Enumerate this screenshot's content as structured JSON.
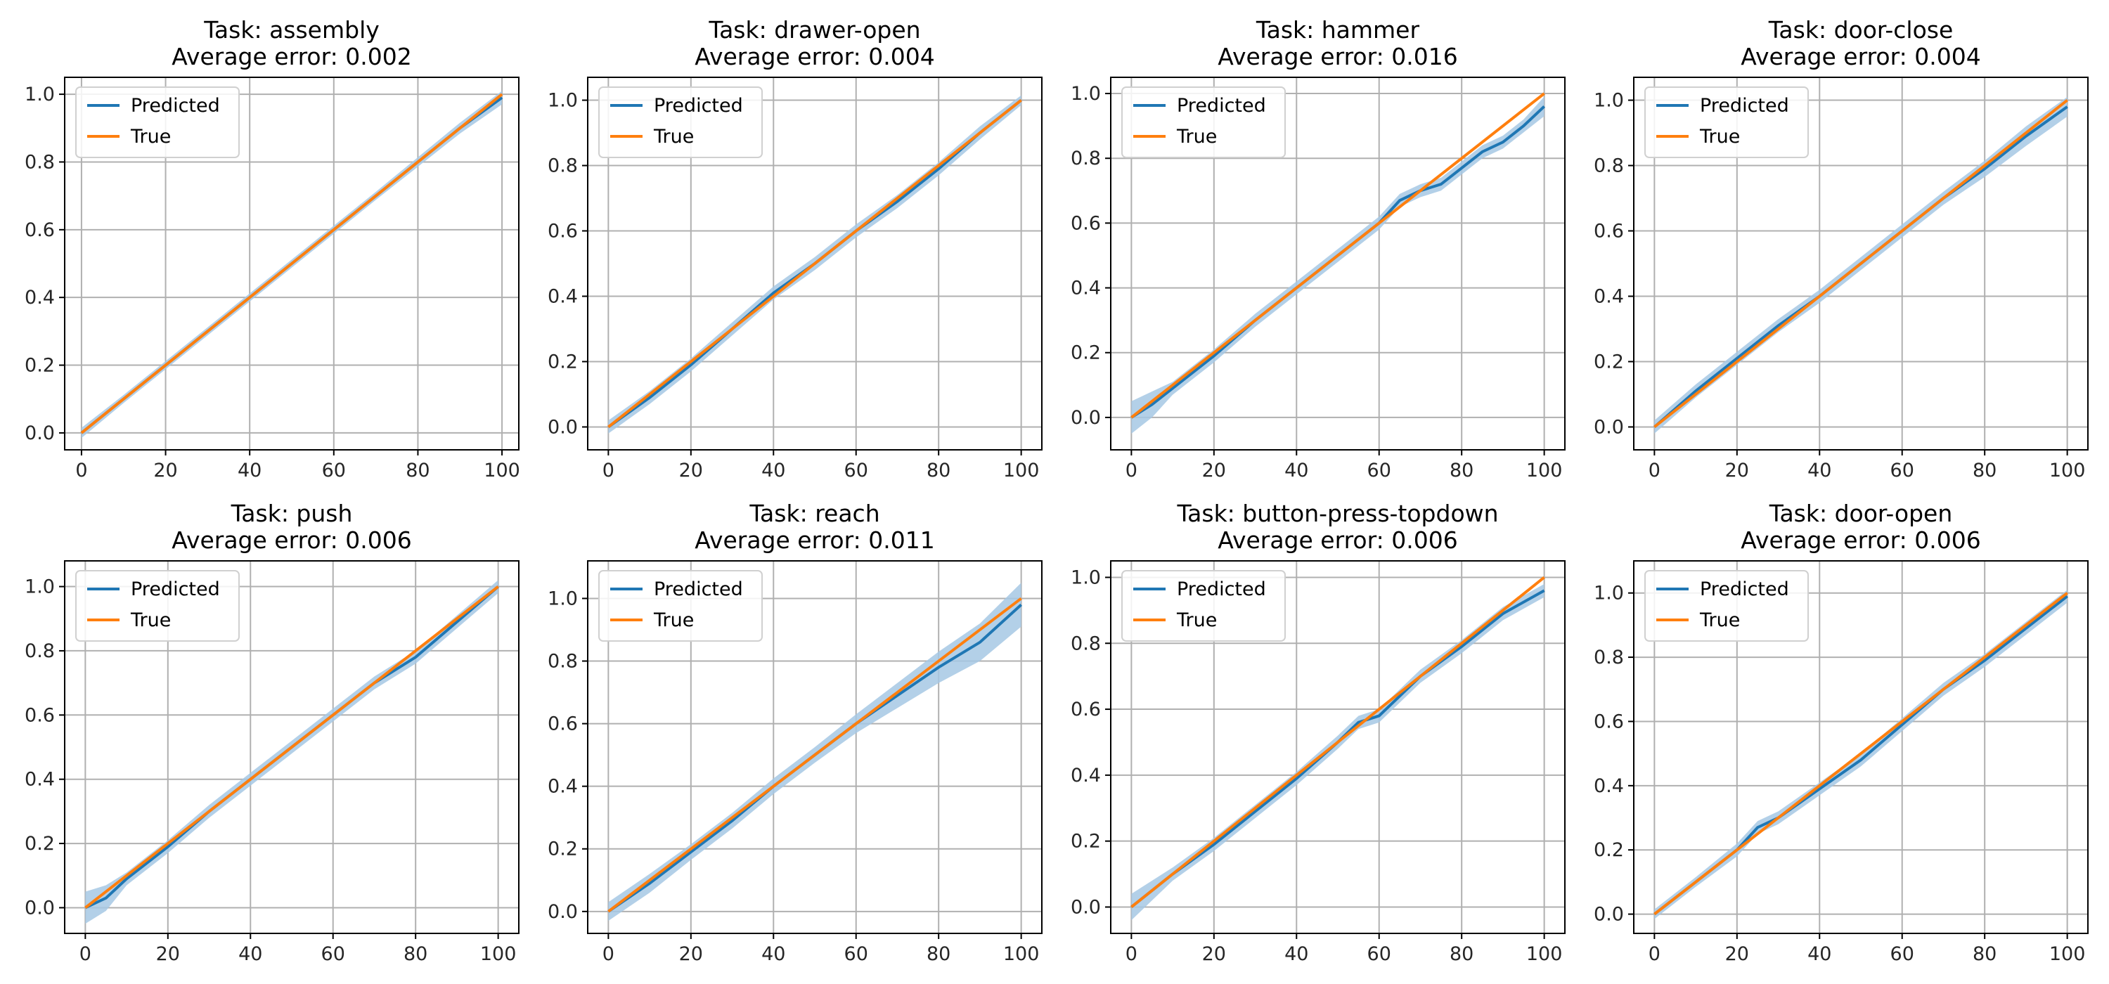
{
  "colors": {
    "predicted": "#1f77b4",
    "true": "#ff7f0e",
    "band": "#a6c8e4",
    "grid": "#b0b0b0",
    "axis": "#000000"
  },
  "legend": {
    "predicted_label": "Predicted",
    "true_label": "True",
    "placement": "upper-left"
  },
  "chart_data": [
    {
      "type": "line",
      "title": "Task: assembly",
      "subtitle": "Average error: 0.002",
      "xlim": [
        -4,
        104
      ],
      "ylim": [
        -0.05,
        1.05
      ],
      "xticks": [
        0,
        20,
        40,
        60,
        80,
        100
      ],
      "yticks": [
        0.0,
        0.2,
        0.4,
        0.6,
        0.8,
        1.0
      ],
      "grid": true,
      "series": [
        {
          "name": "Predicted",
          "x": [
            0,
            10,
            20,
            30,
            40,
            50,
            60,
            70,
            80,
            90,
            100
          ],
          "y": [
            0.0,
            0.1,
            0.2,
            0.3,
            0.4,
            0.5,
            0.6,
            0.7,
            0.8,
            0.9,
            0.99
          ],
          "band": [
            0.015,
            0.012,
            0.012,
            0.012,
            0.012,
            0.012,
            0.012,
            0.012,
            0.014,
            0.016,
            0.02
          ]
        },
        {
          "name": "True",
          "x": [
            0,
            100
          ],
          "y": [
            0.0,
            1.0
          ]
        }
      ]
    },
    {
      "type": "line",
      "title": "Task: drawer-open",
      "subtitle": "Average error: 0.004",
      "xlim": [
        -5,
        105
      ],
      "ylim": [
        -0.07,
        1.07
      ],
      "xticks": [
        0,
        20,
        40,
        60,
        80,
        100
      ],
      "yticks": [
        0.0,
        0.2,
        0.4,
        0.6,
        0.8,
        1.0
      ],
      "grid": true,
      "series": [
        {
          "name": "Predicted",
          "x": [
            0,
            10,
            20,
            30,
            40,
            50,
            60,
            70,
            80,
            90,
            100
          ],
          "y": [
            0.0,
            0.09,
            0.19,
            0.3,
            0.41,
            0.5,
            0.6,
            0.69,
            0.79,
            0.9,
            1.0
          ],
          "band": [
            0.02,
            0.02,
            0.02,
            0.02,
            0.02,
            0.02,
            0.02,
            0.02,
            0.02,
            0.02,
            0.015
          ]
        },
        {
          "name": "True",
          "x": [
            0,
            100
          ],
          "y": [
            0.0,
            1.0
          ]
        }
      ]
    },
    {
      "type": "line",
      "title": "Task: hammer",
      "subtitle": "Average error: 0.016",
      "xlim": [
        -5,
        105
      ],
      "ylim": [
        -0.1,
        1.05
      ],
      "xticks": [
        0,
        20,
        40,
        60,
        80,
        100
      ],
      "yticks": [
        0.0,
        0.2,
        0.4,
        0.6,
        0.8,
        1.0
      ],
      "grid": true,
      "series": [
        {
          "name": "Predicted",
          "x": [
            0,
            5,
            10,
            20,
            30,
            40,
            50,
            60,
            65,
            70,
            75,
            80,
            85,
            90,
            95,
            100
          ],
          "y": [
            0.0,
            0.04,
            0.09,
            0.19,
            0.3,
            0.4,
            0.5,
            0.6,
            0.67,
            0.7,
            0.72,
            0.77,
            0.82,
            0.85,
            0.9,
            0.96
          ],
          "band": [
            0.05,
            0.04,
            0.02,
            0.02,
            0.02,
            0.02,
            0.02,
            0.02,
            0.02,
            0.02,
            0.02,
            0.02,
            0.02,
            0.02,
            0.02,
            0.03
          ]
        },
        {
          "name": "True",
          "x": [
            0,
            100
          ],
          "y": [
            0.0,
            1.0
          ]
        }
      ]
    },
    {
      "type": "line",
      "title": "Task: door-close",
      "subtitle": "Average error: 0.004",
      "xlim": [
        -5,
        105
      ],
      "ylim": [
        -0.07,
        1.07
      ],
      "xticks": [
        0,
        20,
        40,
        60,
        80,
        100
      ],
      "yticks": [
        0.0,
        0.2,
        0.4,
        0.6,
        0.8,
        1.0
      ],
      "grid": true,
      "series": [
        {
          "name": "Predicted",
          "x": [
            0,
            10,
            20,
            30,
            40,
            50,
            60,
            70,
            80,
            90,
            100
          ],
          "y": [
            0.0,
            0.11,
            0.21,
            0.31,
            0.4,
            0.5,
            0.6,
            0.7,
            0.79,
            0.89,
            0.98
          ],
          "band": [
            0.02,
            0.02,
            0.02,
            0.02,
            0.02,
            0.02,
            0.02,
            0.02,
            0.025,
            0.03,
            0.03
          ]
        },
        {
          "name": "True",
          "x": [
            0,
            100
          ],
          "y": [
            0.0,
            1.0
          ]
        }
      ]
    },
    {
      "type": "line",
      "title": "Task: push",
      "subtitle": "Average error: 0.006",
      "xlim": [
        -5,
        105
      ],
      "ylim": [
        -0.08,
        1.08
      ],
      "xticks": [
        0,
        20,
        40,
        60,
        80,
        100
      ],
      "yticks": [
        0.0,
        0.2,
        0.4,
        0.6,
        0.8,
        1.0
      ],
      "grid": true,
      "series": [
        {
          "name": "Predicted",
          "x": [
            0,
            5,
            10,
            20,
            30,
            40,
            50,
            60,
            70,
            80,
            90,
            100
          ],
          "y": [
            0.0,
            0.03,
            0.09,
            0.19,
            0.3,
            0.4,
            0.5,
            0.6,
            0.7,
            0.78,
            0.89,
            1.0
          ],
          "band": [
            0.05,
            0.04,
            0.02,
            0.02,
            0.02,
            0.02,
            0.02,
            0.02,
            0.02,
            0.02,
            0.02,
            0.02
          ]
        },
        {
          "name": "True",
          "x": [
            0,
            100
          ],
          "y": [
            0.0,
            1.0
          ]
        }
      ]
    },
    {
      "type": "line",
      "title": "Task: reach",
      "subtitle": "Average error: 0.011",
      "xlim": [
        -5,
        105
      ],
      "ylim": [
        -0.07,
        1.12
      ],
      "xticks": [
        0,
        20,
        40,
        60,
        80,
        100
      ],
      "yticks": [
        0.0,
        0.2,
        0.4,
        0.6,
        0.8,
        1.0
      ],
      "grid": true,
      "series": [
        {
          "name": "Predicted",
          "x": [
            0,
            10,
            20,
            30,
            40,
            50,
            60,
            70,
            80,
            90,
            100
          ],
          "y": [
            0.0,
            0.09,
            0.19,
            0.29,
            0.4,
            0.5,
            0.6,
            0.69,
            0.78,
            0.86,
            0.98
          ],
          "band": [
            0.03,
            0.03,
            0.025,
            0.025,
            0.025,
            0.025,
            0.03,
            0.04,
            0.05,
            0.06,
            0.07
          ]
        },
        {
          "name": "True",
          "x": [
            0,
            100
          ],
          "y": [
            0.0,
            1.0
          ]
        }
      ]
    },
    {
      "type": "line",
      "title": "Task: button-press-topdown",
      "subtitle": "Average error: 0.006",
      "xlim": [
        -5,
        105
      ],
      "ylim": [
        -0.08,
        1.05
      ],
      "xticks": [
        0,
        20,
        40,
        60,
        80,
        100
      ],
      "yticks": [
        0.0,
        0.2,
        0.4,
        0.6,
        0.8,
        1.0
      ],
      "grid": true,
      "series": [
        {
          "name": "Predicted",
          "x": [
            0,
            10,
            20,
            30,
            40,
            50,
            55,
            60,
            70,
            80,
            90,
            100
          ],
          "y": [
            0.0,
            0.1,
            0.19,
            0.29,
            0.39,
            0.5,
            0.56,
            0.58,
            0.7,
            0.79,
            0.89,
            0.96
          ],
          "band": [
            0.04,
            0.02,
            0.02,
            0.02,
            0.02,
            0.02,
            0.02,
            0.02,
            0.02,
            0.02,
            0.02,
            0.02
          ]
        },
        {
          "name": "True",
          "x": [
            0,
            100
          ],
          "y": [
            0.0,
            1.0
          ]
        }
      ]
    },
    {
      "type": "line",
      "title": "Task: door-open",
      "subtitle": "Average error: 0.006",
      "xlim": [
        -5,
        105
      ],
      "ylim": [
        -0.06,
        1.1
      ],
      "xticks": [
        0,
        20,
        40,
        60,
        80,
        100
      ],
      "yticks": [
        0.0,
        0.2,
        0.4,
        0.6,
        0.8,
        1.0
      ],
      "grid": true,
      "series": [
        {
          "name": "Predicted",
          "x": [
            0,
            10,
            20,
            25,
            30,
            40,
            50,
            60,
            70,
            80,
            90,
            100
          ],
          "y": [
            0.0,
            0.1,
            0.2,
            0.27,
            0.3,
            0.39,
            0.48,
            0.59,
            0.7,
            0.79,
            0.89,
            0.99
          ],
          "band": [
            0.015,
            0.015,
            0.02,
            0.02,
            0.02,
            0.02,
            0.02,
            0.02,
            0.02,
            0.02,
            0.02,
            0.02
          ]
        },
        {
          "name": "True",
          "x": [
            0,
            100
          ],
          "y": [
            0.0,
            1.0
          ]
        }
      ]
    }
  ]
}
